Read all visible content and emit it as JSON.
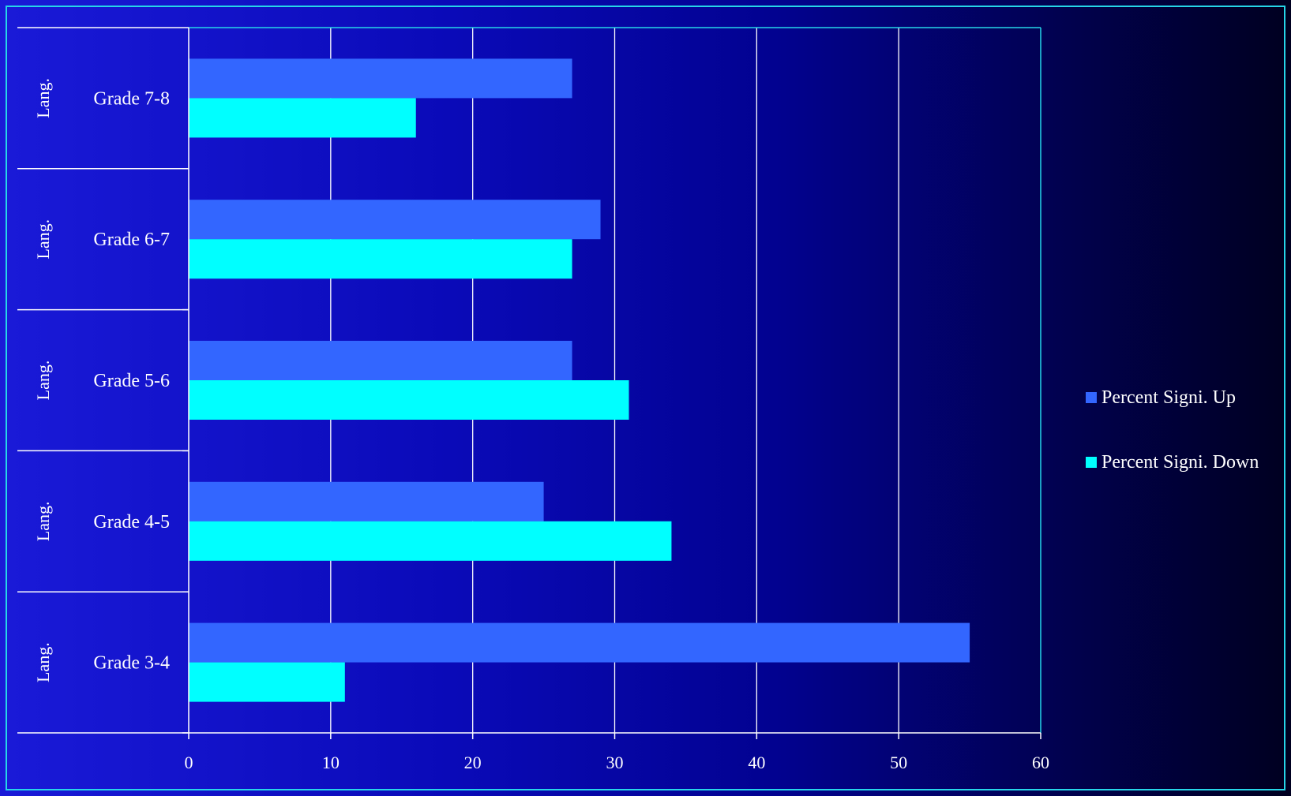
{
  "chart_data": {
    "type": "bar",
    "orientation": "horizontal",
    "categories": [
      {
        "group": "Lang.",
        "label": "Grade 7-8"
      },
      {
        "group": "Lang.",
        "label": "Grade 6-7"
      },
      {
        "group": "Lang.",
        "label": "Grade 5-6"
      },
      {
        "group": "Lang.",
        "label": "Grade 4-5"
      },
      {
        "group": "Lang.",
        "label": "Grade 3-4"
      }
    ],
    "series": [
      {
        "name": "Percent Signi. Up",
        "color": "#3366ff",
        "values": [
          27,
          29,
          27,
          25,
          55
        ]
      },
      {
        "name": "Percent Signi. Down",
        "color": "#00ffff",
        "values": [
          16,
          27,
          31,
          34,
          11
        ]
      }
    ],
    "xlim": [
      0,
      60
    ],
    "xticks": [
      "0",
      "10",
      "20",
      "30",
      "40",
      "50",
      "60"
    ],
    "grid": true,
    "legend_position": "right",
    "title": "",
    "xlabel": "",
    "ylabel": ""
  }
}
